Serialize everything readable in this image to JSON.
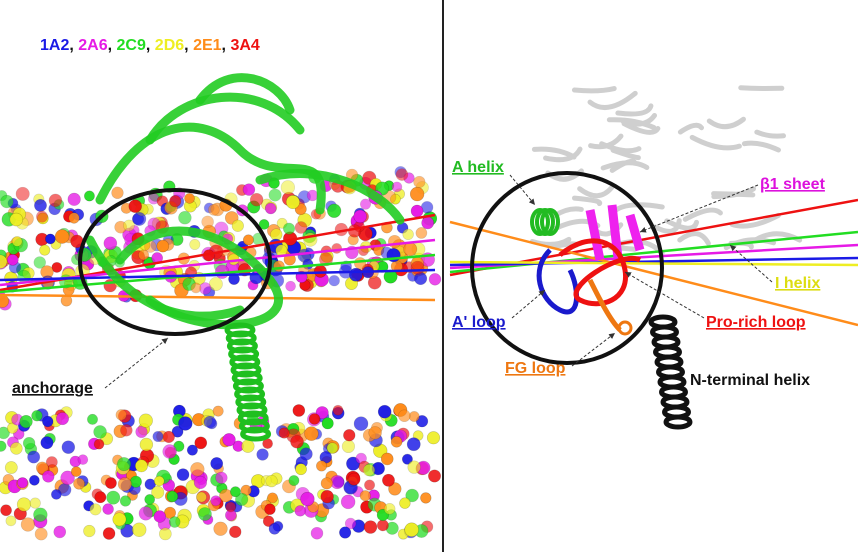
{
  "legend": {
    "items": [
      {
        "label": "1A2",
        "color": "#1a1ae6"
      },
      {
        "label": "2A6",
        "color": "#e61ae6"
      },
      {
        "label": "2C9",
        "color": "#22dd22"
      },
      {
        "label": "2D6",
        "color": "#eeee22"
      },
      {
        "label": "2E1",
        "color": "#ff8c1a"
      },
      {
        "label": "3A4",
        "color": "#ee1111"
      }
    ],
    "separator": ","
  },
  "left_panel": {
    "anchorage_label": "anchorage"
  },
  "right_panel": {
    "labels": {
      "a_helix": "A helix",
      "b1_sheet": "β1 sheet",
      "i_helix": "I helix",
      "a_loop": "A' loop",
      "pro_rich_loop": "Pro-rich loop",
      "fg_loop": "FG loop",
      "n_terminal_helix": "N-terminal helix"
    }
  }
}
